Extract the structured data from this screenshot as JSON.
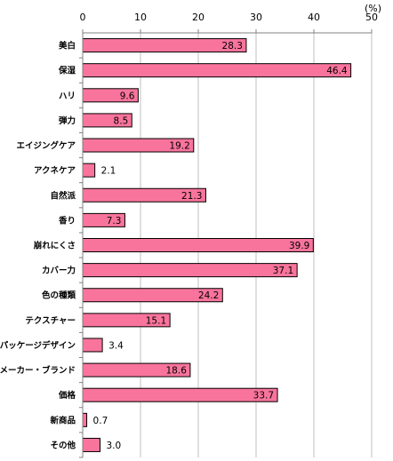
{
  "chart_data": {
    "type": "bar",
    "orientation": "horizontal",
    "unit": "(%)",
    "xlim": [
      0,
      50
    ],
    "xticks": [
      0,
      10,
      20,
      30,
      40,
      50
    ],
    "grid": true,
    "bar_color": "#f9749c",
    "bar_edge_color": "#000000",
    "categories": [
      "美白",
      "保湿",
      "ハリ",
      "弾力",
      "エイジングケア",
      "アクネケア",
      "自然派",
      "香り",
      "崩れにくさ",
      "カバー力",
      "色の種類",
      "テクスチャー",
      "パッケージデザイン",
      "メーカー・ブランド",
      "価格",
      "新商品",
      "その他"
    ],
    "values": [
      28.3,
      46.4,
      9.6,
      8.5,
      19.2,
      2.1,
      21.3,
      7.3,
      39.9,
      37.1,
      24.2,
      15.1,
      3.4,
      18.6,
      33.7,
      0.7,
      3.0
    ],
    "value_labels": [
      "28.3",
      "46.4",
      "9.6",
      "8.5",
      "19.2",
      "2.1",
      "21.3",
      "7.3",
      "39.9",
      "37.1",
      "24.2",
      "15.1",
      "3.4",
      "18.6",
      "33.7",
      "0.7",
      "3.0"
    ]
  }
}
